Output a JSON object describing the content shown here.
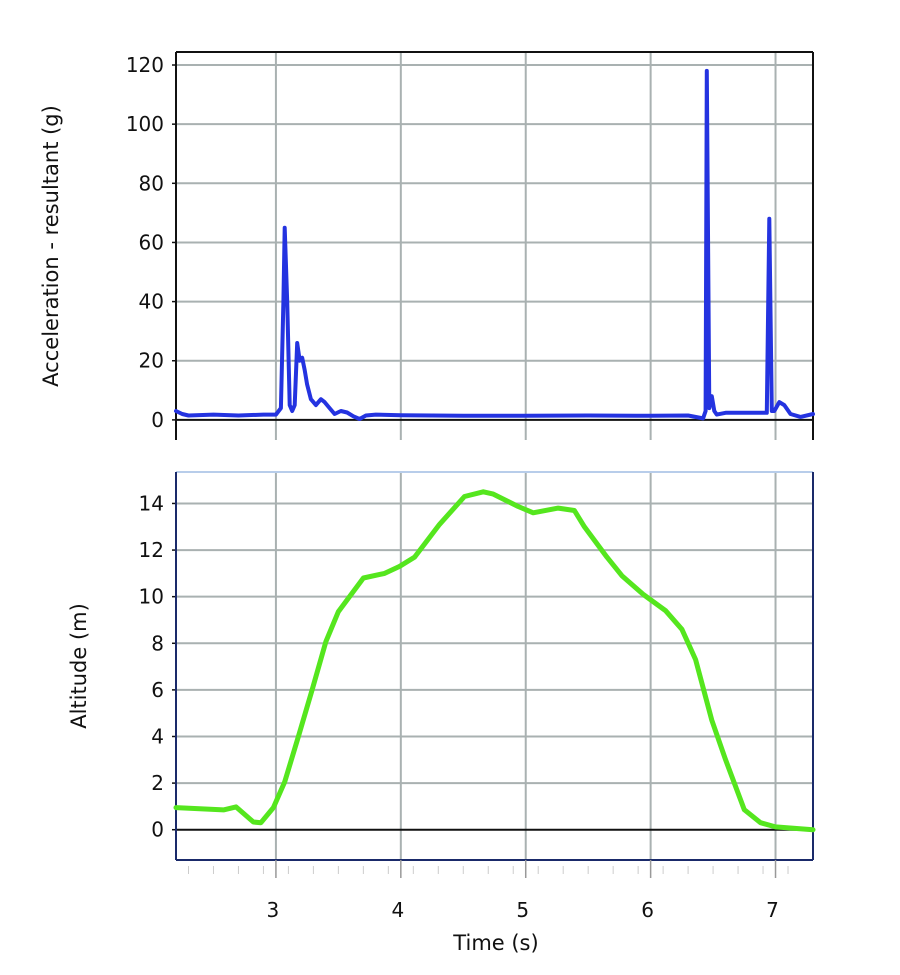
{
  "chart_data": [
    {
      "type": "line",
      "title": "",
      "xlabel": "",
      "ylabel": "Acceleration - resultant (g)",
      "xlim": [
        2.2,
        7.3
      ],
      "ylim": [
        -6.8,
        124.4
      ],
      "yticks": [
        0,
        20,
        40,
        60,
        80,
        100,
        120
      ],
      "xticks": [
        3,
        4,
        5,
        6,
        7
      ],
      "grid": true,
      "series": [
        {
          "name": "Acceleration - resultant",
          "color": "#2433e0",
          "x": [
            2.2,
            2.25,
            2.3,
            2.5,
            2.7,
            2.9,
            3.0,
            3.04,
            3.06,
            3.07,
            3.09,
            3.11,
            3.13,
            3.15,
            3.17,
            3.19,
            3.21,
            3.23,
            3.25,
            3.28,
            3.32,
            3.36,
            3.39,
            3.43,
            3.47,
            3.52,
            3.57,
            3.62,
            3.67,
            3.72,
            3.8,
            4.0,
            4.5,
            5.0,
            5.5,
            6.0,
            6.3,
            6.42,
            6.44,
            6.45,
            6.47,
            6.49,
            6.51,
            6.53,
            6.6,
            6.8,
            6.93,
            6.95,
            6.97,
            6.99,
            7.03,
            7.07,
            7.12,
            7.2,
            7.3
          ],
          "y": [
            3,
            2,
            1.5,
            1.8,
            1.5,
            1.8,
            1.8,
            4,
            40,
            65,
            40,
            5,
            3,
            5,
            26,
            20,
            21,
            17,
            12,
            7,
            5,
            7,
            6,
            4,
            2,
            3,
            2.5,
            1.2,
            0.3,
            1.5,
            1.8,
            1.6,
            1.4,
            1.4,
            1.5,
            1.4,
            1.5,
            0.5,
            3,
            118,
            4,
            8,
            3,
            1.8,
            2.4,
            2.4,
            2.4,
            68,
            3,
            3,
            6,
            5,
            2,
            1,
            2
          ]
        }
      ]
    },
    {
      "type": "line",
      "title": "",
      "xlabel": "Time (s)",
      "ylabel": "Altitude (m)",
      "xlim": [
        2.2,
        7.3
      ],
      "ylim": [
        -1.3,
        15.35
      ],
      "yticks": [
        0,
        2,
        4,
        6,
        8,
        10,
        12,
        14
      ],
      "xticks": [
        3,
        4,
        5,
        6,
        7
      ],
      "grid": true,
      "series": [
        {
          "name": "Altitude",
          "color": "#55e61e",
          "x": [
            2.2,
            2.58,
            2.68,
            2.82,
            2.88,
            2.98,
            3.07,
            3.18,
            3.29,
            3.4,
            3.5,
            3.7,
            3.87,
            3.99,
            4.11,
            4.31,
            4.51,
            4.66,
            4.74,
            4.94,
            5.06,
            5.26,
            5.39,
            5.47,
            5.65,
            5.77,
            5.94,
            6.12,
            6.25,
            6.36,
            6.49,
            6.6,
            6.75,
            6.88,
            7.0,
            7.3
          ],
          "y": [
            0.95,
            0.85,
            0.98,
            0.33,
            0.3,
            0.95,
            2.05,
            4.0,
            6.0,
            8.07,
            9.36,
            10.8,
            11.0,
            11.3,
            11.7,
            13.1,
            14.3,
            14.5,
            14.4,
            13.87,
            13.6,
            13.8,
            13.7,
            13.0,
            11.7,
            10.9,
            10.1,
            9.4,
            8.6,
            7.3,
            4.7,
            3.0,
            0.86,
            0.3,
            0.12,
            0.0
          ]
        }
      ]
    }
  ]
}
